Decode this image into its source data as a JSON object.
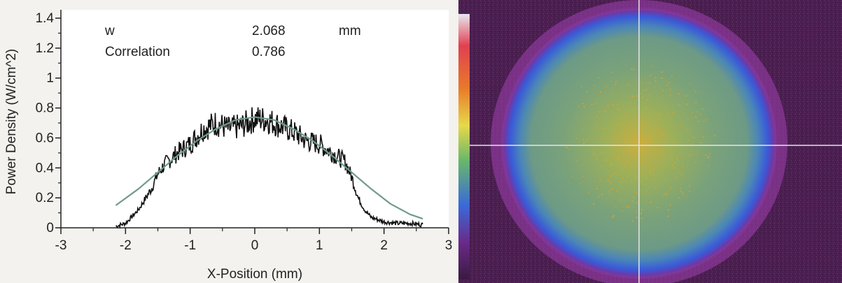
{
  "chart_data": [
    {
      "type": "line",
      "xlabel": "X-Position (mm)",
      "ylabel": "Power Density (W/cm^2)",
      "xlim": [
        -3,
        3
      ],
      "ylim": [
        0,
        1.4
      ],
      "x_ticks": [
        "-3",
        "-2",
        "-1",
        "0",
        "1",
        "2",
        "3"
      ],
      "y_ticks": [
        "0",
        "0.2",
        "0.4",
        "0.6",
        "0.8",
        "1",
        "1.2",
        "1.4"
      ],
      "info": [
        {
          "label": "w",
          "value": "2.068",
          "unit": "mm"
        },
        {
          "label": "Correlation",
          "value": "0.786",
          "unit": ""
        }
      ],
      "series": [
        {
          "kind": "measured",
          "color": "#111111",
          "x": [
            -2.15,
            -2.0,
            -1.8,
            -1.6,
            -1.5,
            -1.4,
            -1.3,
            -1.2,
            -1.0,
            -0.8,
            -0.6,
            -0.4,
            -0.2,
            0.0,
            0.2,
            0.4,
            0.6,
            0.8,
            1.0,
            1.2,
            1.3,
            1.4,
            1.5,
            1.6,
            1.7,
            1.8,
            2.0,
            2.2,
            2.4,
            2.6
          ],
          "y": [
            0.01,
            0.03,
            0.12,
            0.26,
            0.36,
            0.42,
            0.46,
            0.5,
            0.56,
            0.66,
            0.7,
            0.66,
            0.68,
            0.73,
            0.72,
            0.68,
            0.64,
            0.58,
            0.56,
            0.5,
            0.47,
            0.44,
            0.34,
            0.2,
            0.12,
            0.07,
            0.04,
            0.03,
            0.03,
            0.02
          ]
        },
        {
          "kind": "gaussian fit",
          "color": "#6f9a90",
          "x": [
            -2.15,
            -1.8,
            -1.5,
            -1.2,
            -0.9,
            -0.6,
            -0.3,
            0.0,
            0.3,
            0.6,
            0.9,
            1.2,
            1.5,
            1.8,
            2.1,
            2.4,
            2.6
          ],
          "y": [
            0.15,
            0.26,
            0.37,
            0.48,
            0.58,
            0.66,
            0.72,
            0.74,
            0.72,
            0.66,
            0.58,
            0.48,
            0.37,
            0.26,
            0.16,
            0.09,
            0.06
          ]
        }
      ]
    },
    {
      "type": "heatmap",
      "colors": {
        "background": "#4a1f50",
        "halo": "#a040b0",
        "ring": "#3a66d8",
        "core": "#7aa27a",
        "hot": "#e0a428",
        "crosshair": "#e6e6e6"
      },
      "colorbar": [
        "#e8e8f0",
        "#e04050",
        "#e87a2a",
        "#e8d84a",
        "#6ab86a",
        "#3a6ad8",
        "#6a2a8a",
        "#3a1a40"
      ]
    }
  ]
}
